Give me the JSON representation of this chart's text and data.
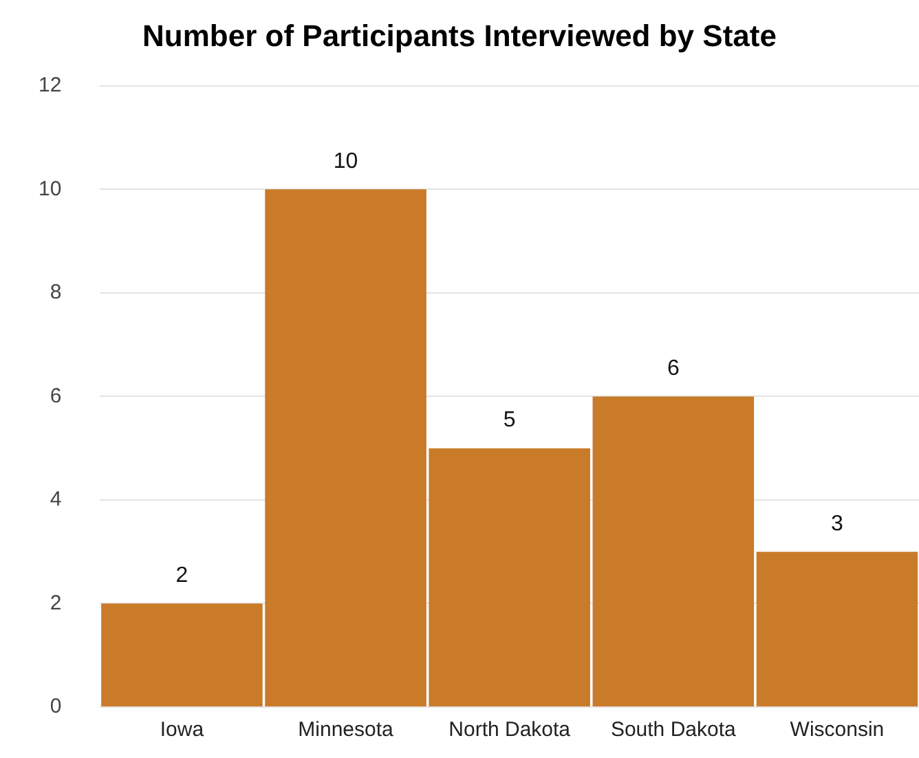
{
  "chart_data": {
    "type": "bar",
    "title": "Number of Participants Interviewed by State",
    "categories": [
      "Iowa",
      "Minnesota",
      "North Dakota",
      "South Dakota",
      "Wisconsin"
    ],
    "values": [
      2,
      10,
      5,
      6,
      3
    ],
    "color": "#c97b2a",
    "ylim": [
      0,
      12
    ],
    "yticks": [
      0,
      2,
      4,
      6,
      8,
      10,
      12
    ],
    "grid": "y",
    "data_labels": true,
    "legend": false
  }
}
